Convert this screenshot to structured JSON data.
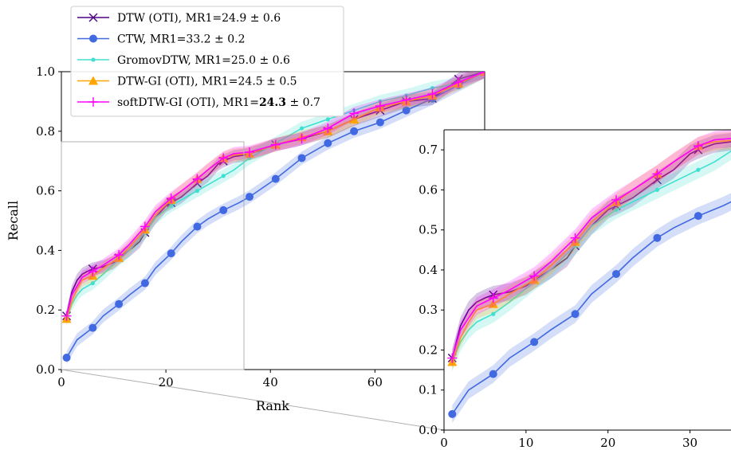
{
  "chart_data": {
    "type": "line",
    "xlabel": "Rank",
    "ylabel": "Recall",
    "main": {
      "xlim": [
        0,
        81
      ],
      "ylim": [
        0,
        1.0
      ],
      "xticks": [
        {
          "v": 0,
          "label": "0"
        },
        {
          "v": 20,
          "label": "20"
        },
        {
          "v": 40,
          "label": "40"
        },
        {
          "v": 60,
          "label": "60"
        }
      ],
      "yticks": [
        {
          "v": 0,
          "label": "0.0"
        },
        {
          "v": 0.2,
          "label": "0.2"
        },
        {
          "v": 0.4,
          "label": "0.4"
        },
        {
          "v": 0.6,
          "label": "0.6"
        },
        {
          "v": 0.8,
          "label": "0.8"
        },
        {
          "v": 1.0,
          "label": "1.0"
        }
      ]
    },
    "inset": {
      "xlim": [
        0,
        35
      ],
      "ylim": [
        0,
        0.75
      ],
      "xticks": [
        {
          "v": 0,
          "label": "0"
        },
        {
          "v": 10,
          "label": "10"
        },
        {
          "v": 20,
          "label": "20"
        },
        {
          "v": 30,
          "label": "30"
        }
      ],
      "yticks": [
        {
          "v": 0,
          "label": "0.0"
        },
        {
          "v": 0.1,
          "label": "0.1"
        },
        {
          "v": 0.2,
          "label": "0.2"
        },
        {
          "v": 0.3,
          "label": "0.3"
        },
        {
          "v": 0.4,
          "label": "0.4"
        },
        {
          "v": 0.5,
          "label": "0.5"
        },
        {
          "v": 0.6,
          "label": "0.6"
        },
        {
          "v": 0.7,
          "label": "0.7"
        }
      ]
    },
    "legend_position": "top-left",
    "grid": false,
    "series": [
      {
        "name": "DTW (OTI), MR1=24.9 ± 0.6",
        "label_parts": [
          "DTW (OTI), MR1=24.9 ± 0.6",
          "",
          ""
        ],
        "color": "#4b0082",
        "marker": "x",
        "x": [
          1,
          2,
          3,
          4,
          5,
          6,
          8,
          10,
          11,
          13,
          15,
          16,
          18,
          20,
          21,
          23,
          25,
          26,
          28,
          30,
          31,
          33,
          35,
          38,
          41,
          45,
          51,
          56,
          61,
          66,
          71,
          76,
          81
        ],
        "y": [
          0.18,
          0.26,
          0.3,
          0.32,
          0.33,
          0.338,
          0.345,
          0.36,
          0.375,
          0.4,
          0.43,
          0.46,
          0.51,
          0.55,
          0.56,
          0.58,
          0.61,
          0.625,
          0.65,
          0.69,
          0.7,
          0.715,
          0.72,
          0.735,
          0.755,
          0.77,
          0.8,
          0.84,
          0.87,
          0.9,
          0.91,
          0.975,
          1.0
        ]
      },
      {
        "name": "CTW, MR1=33.2 ± 0.2",
        "label_parts": [
          "CTW, MR1=33.2 ± 0.2",
          "",
          ""
        ],
        "color": "#4169e1",
        "marker": "o",
        "x": [
          1,
          3,
          6,
          8,
          11,
          13,
          16,
          18,
          21,
          23,
          26,
          28,
          31,
          34,
          36,
          41,
          46,
          51,
          56,
          61,
          66,
          71,
          76,
          81
        ],
        "y": [
          0.04,
          0.1,
          0.14,
          0.18,
          0.22,
          0.25,
          0.29,
          0.34,
          0.39,
          0.43,
          0.48,
          0.505,
          0.535,
          0.56,
          0.58,
          0.64,
          0.71,
          0.76,
          0.8,
          0.83,
          0.87,
          0.91,
          0.955,
          1.0
        ]
      },
      {
        "name": "GromovDTW, MR1=25.0 ± 0.6",
        "label_parts": [
          "GromovDTW, MR1=25.0 ± 0.6",
          "",
          ""
        ],
        "color": "#40e0d0",
        "marker": "dot",
        "x": [
          1,
          2,
          3,
          4,
          6,
          8,
          11,
          13,
          16,
          18,
          21,
          23,
          26,
          28,
          31,
          33,
          36,
          41,
          46,
          51,
          56,
          61,
          66,
          71,
          76,
          81
        ],
        "y": [
          0.17,
          0.22,
          0.25,
          0.27,
          0.29,
          0.32,
          0.37,
          0.4,
          0.46,
          0.51,
          0.55,
          0.57,
          0.6,
          0.62,
          0.65,
          0.67,
          0.71,
          0.76,
          0.81,
          0.84,
          0.87,
          0.9,
          0.92,
          0.945,
          0.96,
          1.0
        ]
      },
      {
        "name": "DTW-GI (OTI), MR1=24.5 ± 0.5",
        "label_parts": [
          "DTW-GI (OTI), MR1=24.5 ± 0.5",
          "",
          ""
        ],
        "color": "#ffa500",
        "marker": "triangle",
        "x": [
          1,
          2,
          3,
          4,
          6,
          8,
          11,
          13,
          16,
          18,
          21,
          23,
          26,
          28,
          31,
          33,
          36,
          41,
          46,
          51,
          56,
          61,
          66,
          71,
          76,
          81
        ],
        "y": [
          0.17,
          0.23,
          0.27,
          0.3,
          0.315,
          0.34,
          0.375,
          0.41,
          0.47,
          0.52,
          0.57,
          0.6,
          0.64,
          0.67,
          0.71,
          0.72,
          0.725,
          0.755,
          0.78,
          0.8,
          0.84,
          0.88,
          0.9,
          0.92,
          0.96,
          1.0
        ]
      },
      {
        "name": "softDTW-GI (OTI), MR1=24.3 ± 0.7",
        "label_parts": [
          "softDTW-GI (OTI), MR1=",
          "24.3",
          " ± 0.7"
        ],
        "color": "#ff00ff",
        "marker": "plus",
        "x": [
          1,
          2,
          3,
          4,
          6,
          8,
          11,
          13,
          16,
          18,
          21,
          23,
          26,
          28,
          31,
          33,
          36,
          41,
          46,
          51,
          56,
          61,
          66,
          71,
          76,
          81
        ],
        "y": [
          0.18,
          0.25,
          0.28,
          0.31,
          0.33,
          0.35,
          0.385,
          0.42,
          0.48,
          0.53,
          0.575,
          0.6,
          0.64,
          0.67,
          0.71,
          0.725,
          0.73,
          0.755,
          0.775,
          0.81,
          0.86,
          0.885,
          0.905,
          0.925,
          0.965,
          1.0
        ]
      }
    ]
  }
}
